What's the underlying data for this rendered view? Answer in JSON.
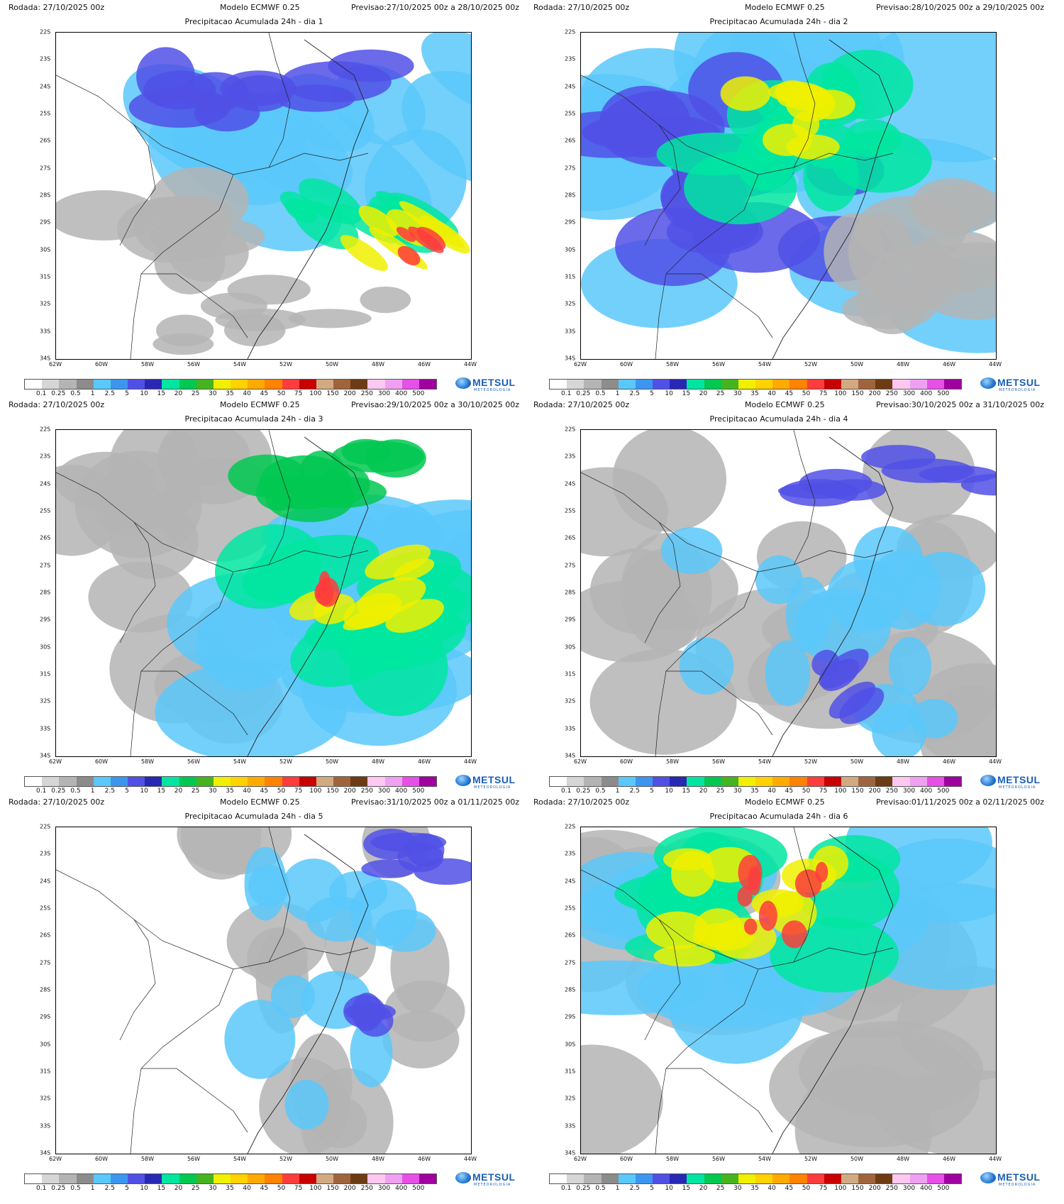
{
  "header": {
    "run_label": "Rodada:",
    "run_value": "27/10/2025 00z",
    "model_label": "Modelo ECMWF 0.25",
    "forecast_label": "Previsao:"
  },
  "panels": [
    {
      "title": "Precipitacao Acumulada 24h - dia 1",
      "forecast": "27/10/2025 00z a 28/10/2025 00z"
    },
    {
      "title": "Precipitacao Acumulada 24h - dia 2",
      "forecast": "28/10/2025 00z a 29/10/2025 00z"
    },
    {
      "title": "Precipitacao Acumulada 24h - dia 3",
      "forecast": "29/10/2025 00z a 30/10/2025 00z"
    },
    {
      "title": "Precipitacao Acumulada 24h - dia 4",
      "forecast": "30/10/2025 00z a 31/10/2025 00z"
    },
    {
      "title": "Precipitacao Acumulada 24h - dia 5",
      "forecast": "31/10/2025 00z a 01/11/2025 00z"
    },
    {
      "title": "Precipitacao Acumulada 24h - dia 6",
      "forecast": "01/11/2025 00z a 02/11/2025 00z"
    }
  ],
  "axes": {
    "lat_labels": [
      "22S",
      "23S",
      "24S",
      "25S",
      "26S",
      "27S",
      "28S",
      "29S",
      "30S",
      "31S",
      "32S",
      "33S",
      "34S"
    ],
    "lon_labels": [
      "62W",
      "60W",
      "58W",
      "56W",
      "54W",
      "52W",
      "50W",
      "48W",
      "46W",
      "44W"
    ]
  },
  "legend": {
    "labels": [
      "0.1",
      "0.25",
      "0.5",
      "1",
      "2.5",
      "5",
      "10",
      "15",
      "20",
      "25",
      "30",
      "35",
      "40",
      "45",
      "50",
      "75",
      "100",
      "150",
      "200",
      "250",
      "300",
      "400",
      "500"
    ],
    "colors": [
      "#ffffff",
      "#d6d6d6",
      "#b4b4b4",
      "#8c8c8c",
      "#5ac8fa",
      "#3c96f0",
      "#5050e6",
      "#2828b4",
      "#00e6a0",
      "#00c850",
      "#46b41e",
      "#f0f000",
      "#ffd200",
      "#ffaa00",
      "#ff8200",
      "#ff3c3c",
      "#c80000",
      "#d2aa82",
      "#a0643c",
      "#6e3c14",
      "#ffc8f0",
      "#f0a0f0",
      "#e650e6",
      "#a000a0"
    ]
  },
  "logo": {
    "name": "METSUL",
    "subtitle": "METEOROLOGIA"
  }
}
